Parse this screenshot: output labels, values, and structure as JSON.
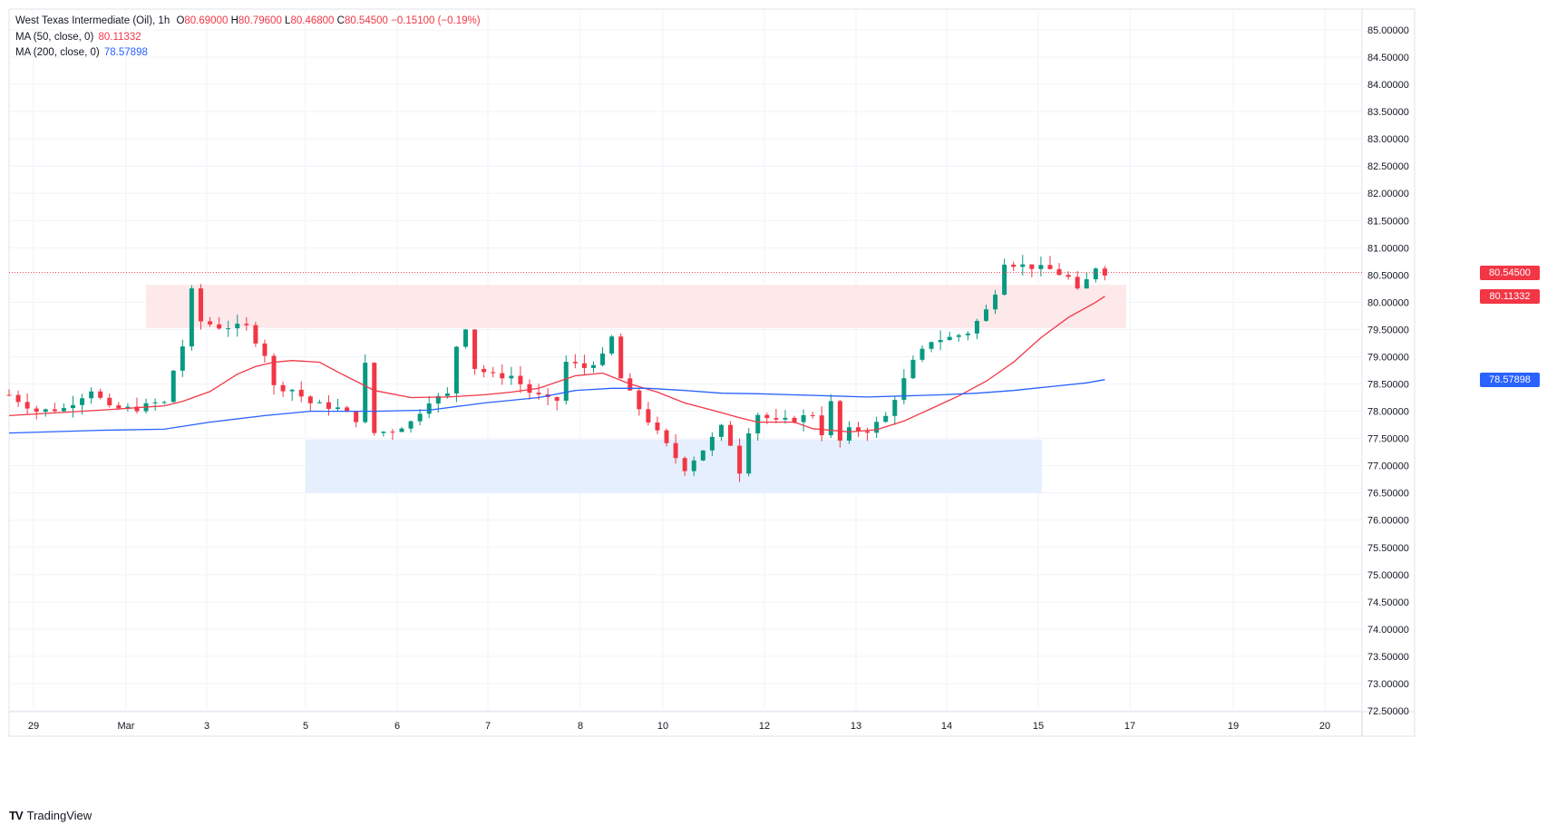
{
  "legend": {
    "symbol": "West Texas Intermediate (Oil), 1h",
    "open_label": "O",
    "open": "80.69000",
    "high_label": "H",
    "high": "80.79600",
    "low_label": "L",
    "low": "80.46800",
    "close_label": "C",
    "close": "80.54500",
    "change": "−0.15100 (−0.19%)",
    "ma50_label": "MA (50, close, 0)",
    "ma50_value": "80.11332",
    "ma200_label": "MA (200, close, 0)",
    "ma200_value": "78.57898"
  },
  "price_tags": {
    "last": "80.54500",
    "ma50": "80.11332",
    "ma200": "78.57898"
  },
  "colors": {
    "up": "#089981",
    "down": "#f23645",
    "ma50": "#f23645",
    "ma200": "#2962ff",
    "resistance_zone": "#fde8ea",
    "support_zone": "#e6effd",
    "grid": "#f0f3fa"
  },
  "branding": {
    "logo": "TV",
    "name": "TradingView"
  },
  "chart_data": {
    "type": "candlestick",
    "title": "West Texas Intermediate (Oil), 1h",
    "x_tick_labels": [
      "29",
      "Mar",
      "3",
      "5",
      "6",
      "7",
      "8",
      "10",
      "12",
      "13",
      "14",
      "15",
      "17",
      "19",
      "20"
    ],
    "y_tick_labels": [
      "72.50000",
      "73.00000",
      "73.50000",
      "74.00000",
      "74.50000",
      "75.00000",
      "75.50000",
      "76.00000",
      "76.50000",
      "77.00000",
      "77.50000",
      "78.00000",
      "78.50000",
      "79.00000",
      "79.50000",
      "80.00000",
      "80.50000",
      "81.00000",
      "81.50000",
      "82.00000",
      "82.50000",
      "83.00000",
      "83.50000",
      "84.00000",
      "84.50000",
      "85.00000"
    ],
    "ylim": [
      72.5,
      85.0
    ],
    "grid": true,
    "last_price": 80.545,
    "zones": [
      {
        "type": "resistance",
        "low": 79.53,
        "high": 80.32,
        "from": "Mar",
        "to": "17"
      },
      {
        "type": "support",
        "low": 76.5,
        "high": 77.48,
        "from": "5",
        "to": "15"
      }
    ],
    "series": [
      {
        "name": "MA (50, close, 0)",
        "type": "line",
        "last": 80.11332,
        "points": [
          [
            0,
            77.92
          ],
          [
            10,
            78.02
          ],
          [
            17,
            78.1
          ],
          [
            19,
            78.18
          ],
          [
            22,
            78.36
          ],
          [
            25,
            78.68
          ],
          [
            27,
            78.82
          ],
          [
            29,
            78.9
          ],
          [
            31,
            78.93
          ],
          [
            34,
            78.9
          ],
          [
            36,
            78.72
          ],
          [
            40,
            78.38
          ],
          [
            44,
            78.25
          ],
          [
            48,
            78.26
          ],
          [
            52,
            78.3
          ],
          [
            55,
            78.35
          ],
          [
            58,
            78.42
          ],
          [
            62,
            78.65
          ],
          [
            65,
            78.7
          ],
          [
            68,
            78.5
          ],
          [
            71,
            78.35
          ],
          [
            74,
            78.15
          ],
          [
            77,
            78.02
          ],
          [
            80,
            77.88
          ],
          [
            82,
            77.8
          ],
          [
            86,
            77.8
          ],
          [
            88,
            77.68
          ],
          [
            92,
            77.62
          ],
          [
            95,
            77.66
          ],
          [
            98,
            77.82
          ],
          [
            101,
            78.05
          ],
          [
            104,
            78.28
          ],
          [
            107,
            78.55
          ],
          [
            110,
            78.9
          ],
          [
            113,
            79.35
          ],
          [
            116,
            79.72
          ],
          [
            119,
            80.0
          ],
          [
            120,
            80.11
          ]
        ]
      },
      {
        "name": "MA (200, close, 0)",
        "type": "line",
        "last": 78.57898,
        "points": [
          [
            0,
            77.6
          ],
          [
            10,
            77.65
          ],
          [
            17,
            77.67
          ],
          [
            22,
            77.8
          ],
          [
            28,
            77.92
          ],
          [
            33,
            78.0
          ],
          [
            40,
            78.0
          ],
          [
            46,
            78.02
          ],
          [
            52,
            78.15
          ],
          [
            58,
            78.25
          ],
          [
            62,
            78.38
          ],
          [
            66,
            78.42
          ],
          [
            70,
            78.42
          ],
          [
            74,
            78.38
          ],
          [
            78,
            78.33
          ],
          [
            82,
            78.32
          ],
          [
            86,
            78.3
          ],
          [
            90,
            78.28
          ],
          [
            94,
            78.26
          ],
          [
            98,
            78.28
          ],
          [
            102,
            78.3
          ],
          [
            106,
            78.33
          ],
          [
            110,
            78.38
          ],
          [
            114,
            78.45
          ],
          [
            118,
            78.52
          ],
          [
            120,
            78.58
          ]
        ]
      },
      {
        "name": "price",
        "type": "close_path",
        "points": [
          [
            0,
            78.3
          ],
          [
            3,
            78.0
          ],
          [
            6,
            78.05
          ],
          [
            9,
            78.4
          ],
          [
            11,
            78.05
          ],
          [
            14,
            78.05
          ],
          [
            16,
            78.15
          ],
          [
            17,
            78.15
          ],
          [
            18,
            78.75
          ],
          [
            19,
            79.2
          ],
          [
            20,
            80.2
          ],
          [
            21,
            79.65
          ],
          [
            23,
            79.55
          ],
          [
            26,
            79.55
          ],
          [
            27,
            79.3
          ],
          [
            28,
            79.05
          ],
          [
            29,
            78.45
          ],
          [
            31,
            78.4
          ],
          [
            33,
            78.15
          ],
          [
            36,
            78.05
          ],
          [
            38,
            77.85
          ],
          [
            39,
            78.85
          ],
          [
            40,
            77.6
          ],
          [
            42,
            77.65
          ],
          [
            44,
            77.8
          ],
          [
            46,
            78.2
          ],
          [
            48,
            78.3
          ],
          [
            49,
            79.2
          ],
          [
            50,
            79.55
          ],
          [
            51,
            78.8
          ],
          [
            53,
            78.65
          ],
          [
            55,
            78.65
          ],
          [
            57,
            78.35
          ],
          [
            59,
            78.2
          ],
          [
            60,
            78.2
          ],
          [
            61,
            78.9
          ],
          [
            63,
            78.8
          ],
          [
            65,
            79.0
          ],
          [
            66,
            79.35
          ],
          [
            67,
            78.6
          ],
          [
            69,
            78.05
          ],
          [
            71,
            77.6
          ],
          [
            73,
            77.15
          ],
          [
            74,
            76.95
          ],
          [
            76,
            77.3
          ],
          [
            78,
            77.7
          ],
          [
            79,
            77.4
          ],
          [
            80,
            76.9
          ],
          [
            81,
            77.65
          ],
          [
            82,
            77.95
          ],
          [
            84,
            77.8
          ],
          [
            86,
            77.85
          ],
          [
            88,
            77.95
          ],
          [
            89,
            77.6
          ],
          [
            90,
            78.15
          ],
          [
            91,
            77.45
          ],
          [
            92,
            77.65
          ],
          [
            94,
            77.65
          ],
          [
            96,
            77.9
          ],
          [
            97,
            78.25
          ],
          [
            99,
            78.9
          ],
          [
            101,
            79.3
          ],
          [
            103,
            79.35
          ],
          [
            105,
            79.45
          ],
          [
            107,
            79.85
          ],
          [
            108,
            80.2
          ],
          [
            109,
            80.75
          ],
          [
            110,
            80.7
          ],
          [
            112,
            80.65
          ],
          [
            114,
            80.6
          ],
          [
            116,
            80.45
          ],
          [
            117,
            80.2
          ],
          [
            118,
            80.4
          ],
          [
            119,
            80.65
          ],
          [
            120,
            80.545
          ]
        ]
      }
    ]
  }
}
